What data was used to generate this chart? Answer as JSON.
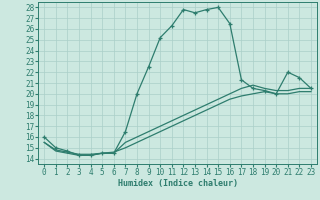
{
  "title": "",
  "xlabel": "Humidex (Indice chaleur)",
  "xlim": [
    -0.5,
    23.5
  ],
  "ylim": [
    13.5,
    28.5
  ],
  "xticks": [
    0,
    1,
    2,
    3,
    4,
    5,
    6,
    7,
    8,
    9,
    10,
    11,
    12,
    13,
    14,
    15,
    16,
    17,
    18,
    19,
    20,
    21,
    22,
    23
  ],
  "yticks": [
    14,
    15,
    16,
    17,
    18,
    19,
    20,
    21,
    22,
    23,
    24,
    25,
    26,
    27,
    28
  ],
  "bg_color": "#cce8e0",
  "line_color": "#2e7d6e",
  "grid_color": "#aacfc8",
  "line1_x": [
    0,
    1,
    2,
    3,
    4,
    5,
    6,
    7,
    8,
    9,
    10,
    11,
    12,
    13,
    14,
    15,
    16,
    17,
    18,
    19,
    20,
    21,
    22,
    23
  ],
  "line1_y": [
    16.0,
    15.0,
    14.7,
    14.3,
    14.3,
    14.5,
    14.5,
    16.5,
    20.0,
    22.5,
    25.2,
    26.3,
    27.8,
    27.5,
    27.8,
    28.0,
    26.5,
    21.3,
    20.5,
    20.3,
    20.0,
    22.0,
    21.5,
    20.5
  ],
  "line2_x": [
    0,
    1,
    2,
    3,
    4,
    5,
    6,
    7,
    8,
    9,
    10,
    11,
    12,
    13,
    14,
    15,
    16,
    17,
    18,
    19,
    20,
    21,
    22,
    23
  ],
  "line2_y": [
    15.5,
    14.7,
    14.5,
    14.3,
    14.3,
    14.5,
    14.5,
    15.5,
    16.0,
    16.5,
    17.0,
    17.5,
    18.0,
    18.5,
    19.0,
    19.5,
    20.0,
    20.5,
    20.8,
    20.5,
    20.3,
    20.3,
    20.5,
    20.5
  ],
  "line3_x": [
    0,
    1,
    2,
    3,
    4,
    5,
    6,
    7,
    8,
    9,
    10,
    11,
    12,
    13,
    14,
    15,
    16,
    17,
    18,
    19,
    20,
    21,
    22,
    23
  ],
  "line3_y": [
    15.5,
    14.8,
    14.6,
    14.4,
    14.4,
    14.5,
    14.6,
    15.0,
    15.5,
    16.0,
    16.5,
    17.0,
    17.5,
    18.0,
    18.5,
    19.0,
    19.5,
    19.8,
    20.0,
    20.2,
    20.0,
    20.0,
    20.2,
    20.2
  ],
  "font_size_ticks": 5.5,
  "font_size_xlabel": 6.0
}
